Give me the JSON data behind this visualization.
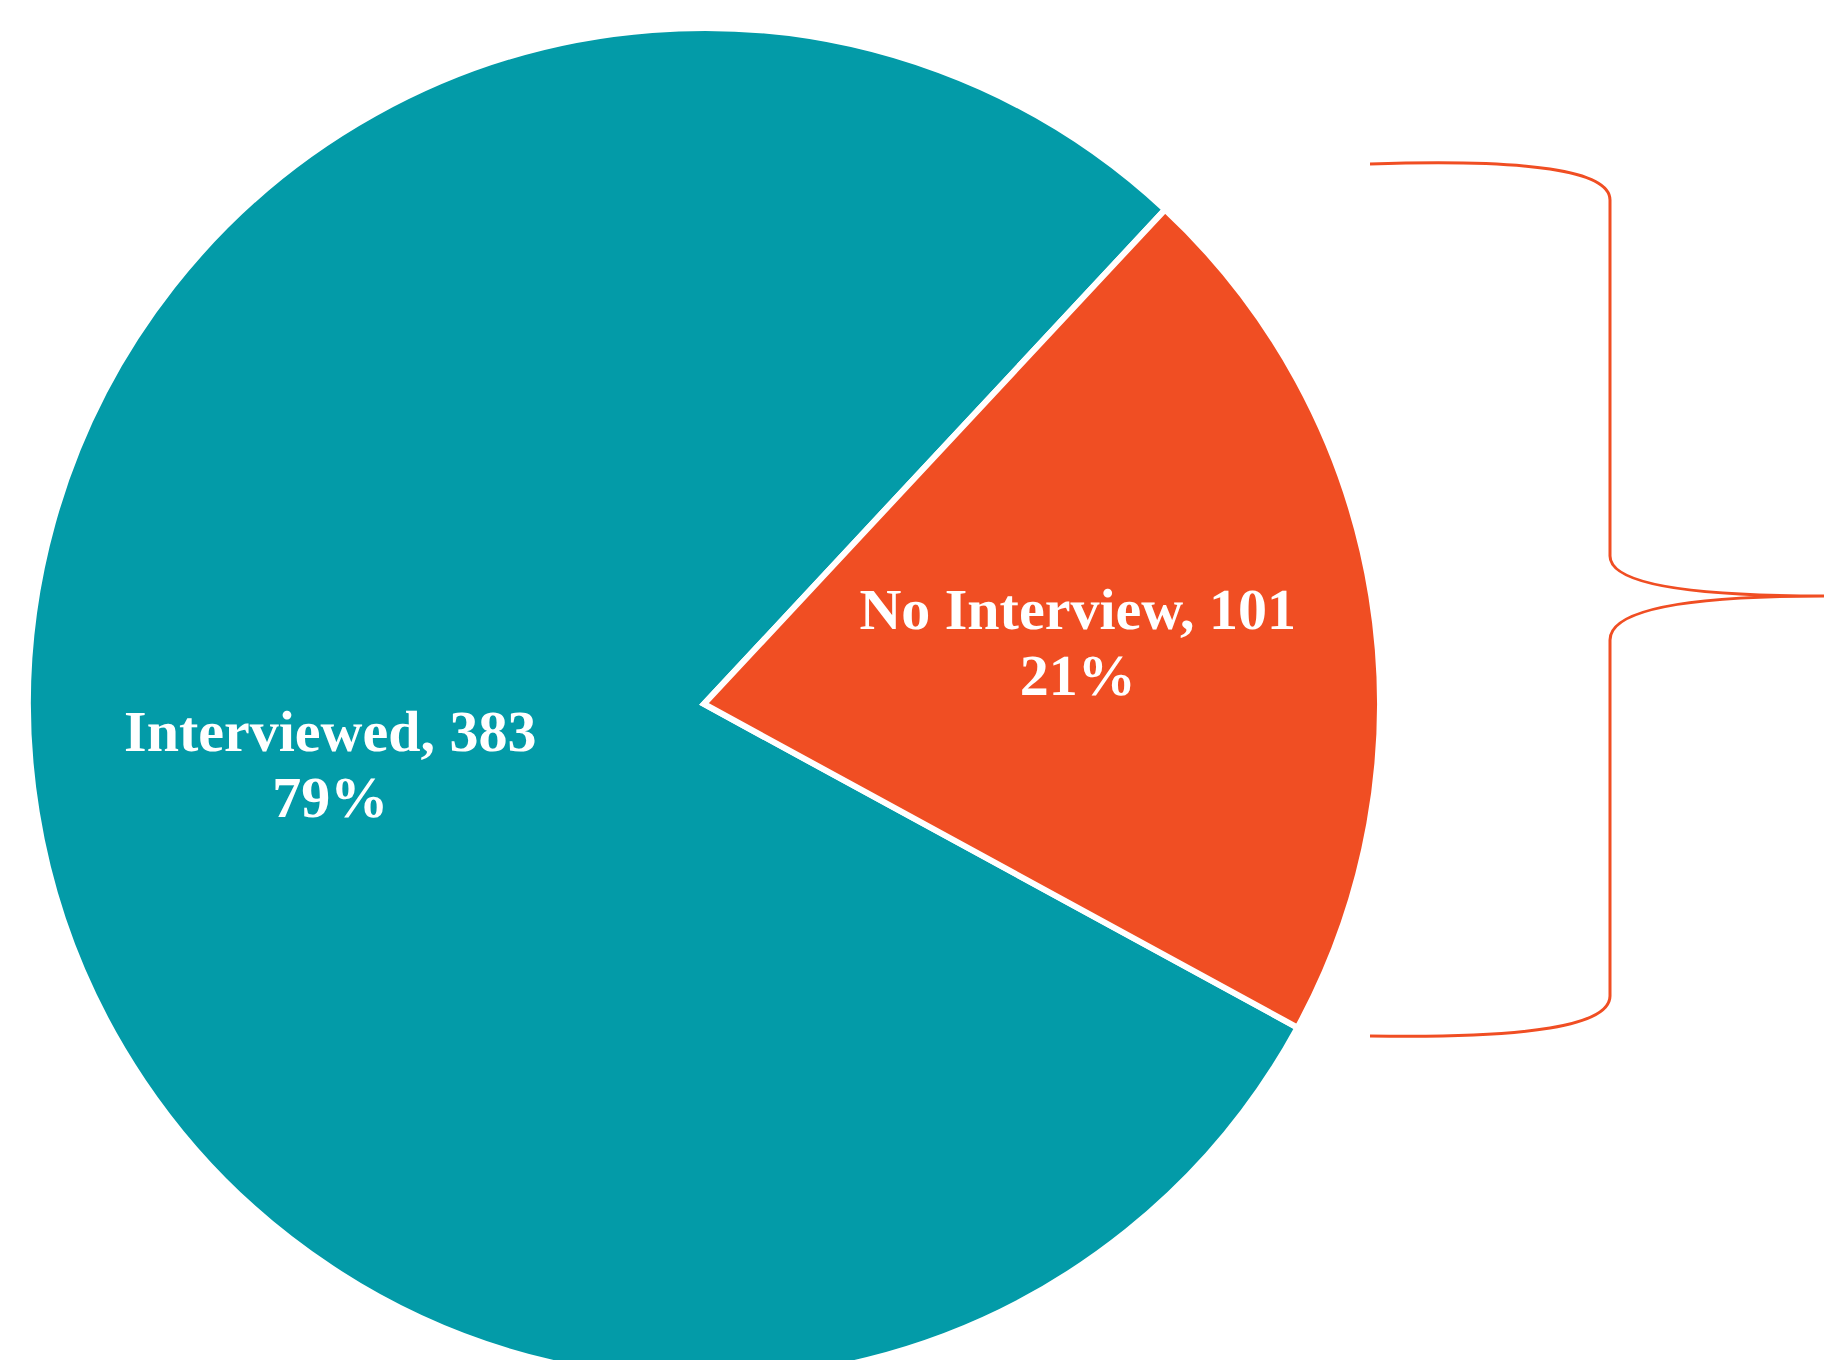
{
  "chart_data": {
    "type": "pie",
    "categories": [
      "Interviewed, 383",
      "No Interview, 101"
    ],
    "values": [
      79,
      21
    ],
    "colors": [
      "#039ba8",
      "#f04e23"
    ],
    "value_labels": [
      "79%",
      "21%"
    ]
  }
}
